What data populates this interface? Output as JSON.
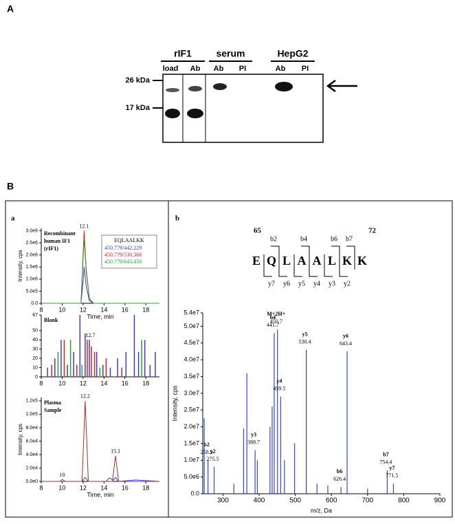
{
  "panel_a": {
    "label": "A",
    "groups": [
      {
        "name": "rIF1",
        "lanes": [
          "load",
          "Ab"
        ]
      },
      {
        "name": "serum",
        "lanes": [
          "Ab",
          "PI"
        ]
      },
      {
        "name": "HepG2",
        "lanes": [
          "Ab",
          "PI"
        ]
      }
    ],
    "markers": [
      "26 kDa",
      "17 kDa"
    ]
  },
  "panel_b": {
    "label": "B",
    "sub_a": "a",
    "sub_b": "b",
    "sequence": {
      "start": 65,
      "end": 72,
      "residues": [
        "E",
        "Q",
        "L",
        "A",
        "A",
        "L",
        "K",
        "K"
      ],
      "b_ions": [
        "b2",
        "b4",
        "b6",
        "b7"
      ],
      "y_ions": [
        "y7",
        "y6",
        "y5",
        "y4",
        "y3",
        "y2"
      ]
    }
  },
  "chart_data": [
    {
      "type": "line",
      "title": [
        "Recombinant",
        "human IF1",
        "(rIF1)"
      ],
      "y_label": "Intensity, cps",
      "x_label": "Time, min",
      "legend_title": "EQLAALKK",
      "peak_labels": [
        12.1
      ],
      "xlim": [
        8,
        19.3
      ],
      "xticks": [
        8,
        10,
        12,
        14,
        16,
        18
      ],
      "ylim": [
        0,
        3100000
      ],
      "yticks": [
        {
          "value": 0,
          "label": "0.0"
        },
        {
          "value": 500000,
          "label": "5.0e5"
        },
        {
          "value": 1000000,
          "label": "1.0e6"
        },
        {
          "value": 1500000,
          "label": "1.5e6"
        },
        {
          "value": 2000000,
          "label": "2.0e6"
        },
        {
          "value": 2500000,
          "label": "2.5e6"
        },
        {
          "value": 3000000,
          "label": "3.0e6"
        }
      ],
      "series": [
        {
          "name": "450.779/442.229",
          "color": "#3b3bd6",
          "x": [
            8,
            11.8,
            12.0,
            12.1,
            12.3,
            12.6,
            13.0,
            19.3
          ],
          "values": [
            0,
            0,
            900000,
            1500000,
            700000,
            100000,
            0,
            0
          ]
        },
        {
          "name": "450.779/530.366",
          "color": "#d62020",
          "x": [
            8,
            11.8,
            12.0,
            12.1,
            12.3,
            12.6,
            13.0,
            19.3
          ],
          "values": [
            0,
            0,
            2000000,
            3000000,
            1400000,
            200000,
            0,
            0
          ]
        },
        {
          "name": "450.779/643.450",
          "color": "#2ca02c",
          "x": [
            8,
            11.8,
            12.0,
            12.1,
            12.3,
            12.6,
            13.0,
            19.3
          ],
          "values": [
            0,
            0,
            1800000,
            2700000,
            1300000,
            180000,
            0,
            0
          ]
        }
      ]
    },
    {
      "type": "stem",
      "title": [
        "Blank"
      ],
      "peak_labels": [
        12.7
      ],
      "xlim": [
        8,
        19.3
      ],
      "xticks": [
        8,
        10,
        12,
        14,
        16,
        18
      ],
      "ylim": [
        0,
        67
      ],
      "yticks": [
        0,
        10,
        20,
        30,
        40,
        50,
        67
      ],
      "series": [
        {
          "color": "#3b3bd6",
          "x": [
            8.6,
            9.3,
            9.9,
            10.5,
            11.1,
            11.7,
            12.2,
            12.6,
            13.3,
            13.9,
            14.6,
            15.3,
            16.1,
            16.9,
            17.3,
            17.9,
            18.4,
            18.9
          ],
          "values": [
            10,
            20,
            40,
            13,
            27,
            67,
            47,
            40,
            27,
            13,
            10,
            20,
            27,
            67,
            27,
            40,
            13,
            27
          ]
        },
        {
          "color": "#d62020",
          "x": [
            9.0,
            10.2,
            11.4,
            12.4,
            12.8,
            13.1,
            14.2,
            15.7
          ],
          "values": [
            13,
            40,
            13,
            40,
            33,
            27,
            20,
            10
          ]
        },
        {
          "color": "#2ca02c",
          "x": [
            9.6,
            10.8,
            11.9,
            13.6,
            17.6
          ],
          "values": [
            27,
            40,
            13,
            10,
            40
          ]
        }
      ]
    },
    {
      "type": "line",
      "title": [
        "Plasma",
        "Sample"
      ],
      "y_label": "Intensity, cps",
      "x_label": "Time, min",
      "peak_labels": [
        10.0,
        12.2,
        15.1
      ],
      "xlim": [
        8,
        19.3
      ],
      "xticks": [
        8,
        10,
        12,
        14,
        16,
        18
      ],
      "ylim": [
        0,
        125000
      ],
      "yticks": [
        {
          "value": 0,
          "label": "0.0e0"
        },
        {
          "value": 20000,
          "label": "2.0e4"
        },
        {
          "value": 40000,
          "label": "4.0e4"
        },
        {
          "value": 60000,
          "label": "6.0e4"
        },
        {
          "value": 80000,
          "label": "8.0e4"
        },
        {
          "value": 100000,
          "label": "1.0e5"
        },
        {
          "value": 120000,
          "label": "1.2e5"
        }
      ],
      "series": [
        {
          "color": "#3b3bd6",
          "x": [
            8,
            9.8,
            10.0,
            10.3,
            11.9,
            12.2,
            12.5,
            14.2,
            14.5,
            14.9,
            15.1,
            15.4,
            17,
            19.3
          ],
          "values": [
            0,
            0,
            3000,
            0,
            0,
            6000,
            0,
            0,
            5000,
            2000,
            6000,
            0,
            2000,
            0
          ]
        },
        {
          "color": "#b02a2a",
          "x": [
            8,
            11.9,
            12.2,
            12.5,
            14.8,
            15.1,
            15.4,
            19.3
          ],
          "values": [
            0,
            0,
            120000,
            0,
            0,
            38000,
            0,
            0
          ]
        }
      ]
    },
    {
      "type": "stem",
      "y_label": "Intensity, cps",
      "x_label": "m/z, Da",
      "xlim": [
        244,
        900
      ],
      "xticks": [
        300,
        400,
        500,
        600,
        700,
        800,
        900
      ],
      "ylim": [
        0,
        54000000
      ],
      "yticks": [
        {
          "value": 0,
          "label": "0.0"
        },
        {
          "value": 5000000,
          "label": "5.0e6"
        },
        {
          "value": 10000000,
          "label": "1.0e7"
        },
        {
          "value": 15000000,
          "label": "1.5e7"
        },
        {
          "value": 20000000,
          "label": "2.0e7"
        },
        {
          "value": 25000000,
          "label": "2.5e7"
        },
        {
          "value": 30000000,
          "label": "3.0e7"
        },
        {
          "value": 35000000,
          "label": "3.5e7"
        },
        {
          "value": 40000000,
          "label": "4.0e7"
        },
        {
          "value": 45000000,
          "label": "4.5e7"
        },
        {
          "value": 50000000,
          "label": "5.0e7"
        },
        {
          "value": 54000000,
          "label": "5.4e7"
        }
      ],
      "series": [
        {
          "color": "#3344cc",
          "x": [
            248,
            258.5,
            275.5,
            330,
            357,
            366,
            388.7,
            395,
            430,
            436,
            441.7,
            450.7,
            459.5,
            470,
            498,
            530.4,
            560,
            590,
            626.4,
            643.4,
            700,
            754.4,
            771.5
          ],
          "values": [
            22500000,
            10000000,
            8000000,
            3000000,
            19500000,
            36000000,
            13000000,
            10000000,
            20000000,
            26000000,
            48000000,
            49000000,
            29000000,
            10000000,
            15000000,
            43000000,
            3000000,
            2500000,
            2000000,
            42500000,
            1500000,
            7000000,
            3000000
          ],
          "ion_labels": [
            null,
            "b2",
            "y2",
            null,
            null,
            null,
            "y3",
            null,
            null,
            null,
            "b4",
            "M+2H+",
            "y4",
            null,
            null,
            "y5",
            null,
            null,
            "b6",
            "y6",
            null,
            "b7",
            "y7"
          ]
        }
      ]
    }
  ]
}
